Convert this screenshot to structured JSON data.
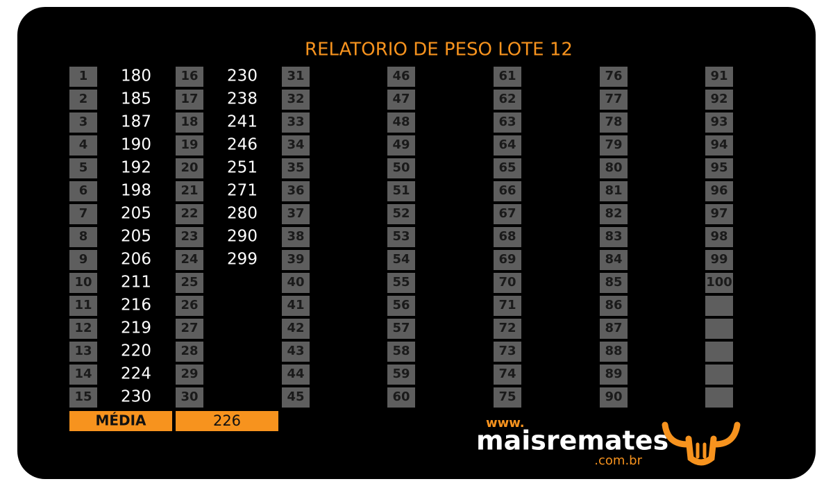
{
  "title": "RELATORIO DE PESO LOTE 12",
  "columns": [
    {
      "numbers": [
        1,
        2,
        3,
        4,
        5,
        6,
        7,
        8,
        9,
        10,
        11,
        12,
        13,
        14,
        15
      ],
      "weights": [
        180,
        185,
        187,
        190,
        192,
        198,
        205,
        205,
        206,
        211,
        216,
        219,
        220,
        224,
        230
      ]
    },
    {
      "numbers": [
        16,
        17,
        18,
        19,
        20,
        21,
        22,
        23,
        24,
        25,
        26,
        27,
        28,
        29,
        30
      ],
      "weights": [
        230,
        238,
        241,
        246,
        251,
        271,
        280,
        290,
        299
      ]
    },
    {
      "numbers": [
        31,
        32,
        33,
        34,
        35,
        36,
        37,
        38,
        39,
        40,
        41,
        42,
        43,
        44,
        45
      ]
    },
    {
      "numbers": [
        46,
        47,
        48,
        49,
        50,
        51,
        52,
        53,
        54,
        55,
        56,
        57,
        58,
        59,
        60
      ]
    },
    {
      "numbers": [
        61,
        62,
        63,
        64,
        65,
        66,
        67,
        68,
        69,
        70,
        71,
        72,
        73,
        74,
        75
      ]
    },
    {
      "numbers": [
        76,
        77,
        78,
        79,
        80,
        81,
        82,
        83,
        84,
        85,
        86,
        87,
        88,
        89,
        90
      ]
    },
    {
      "numbers": [
        91,
        92,
        93,
        94,
        95,
        96,
        97,
        98,
        99,
        100
      ]
    }
  ],
  "average": {
    "label": "MÉDIA",
    "value": 226
  },
  "logo": {
    "www": "www.",
    "name": "maisremates",
    "domain": ".com.br"
  }
}
